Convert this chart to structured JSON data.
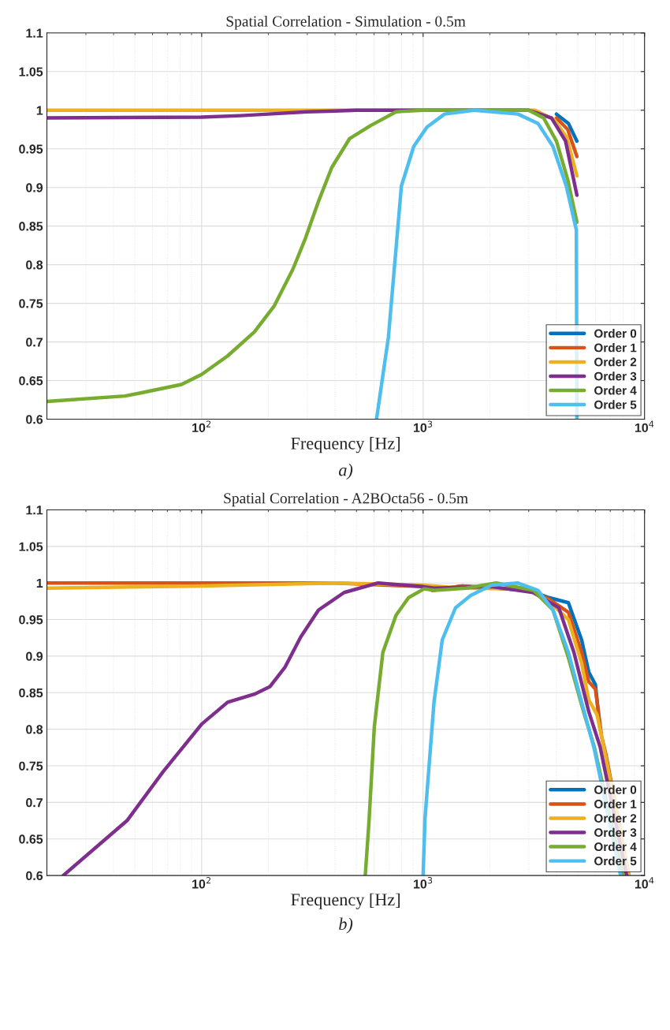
{
  "chart_data": [
    {
      "type": "line",
      "title": "Spatial Correlation - Simulation - 0.5m",
      "xlabel": "Frequency [Hz]",
      "annotations": [
        "a)"
      ],
      "log": "x",
      "grid": true,
      "legend": "bottom right",
      "line_style": "solid",
      "marker": "none",
      "xlim": [
        20,
        10000
      ],
      "xticks": [
        {
          "value": 100,
          "label": "10$^{2}$"
        },
        {
          "value": 1000,
          "label": "10$^{3}$"
        },
        {
          "value": 10000,
          "label": "10$^{4}$"
        }
      ],
      "ylim": [
        0.6,
        1.1
      ],
      "yticks": [
        0.6,
        0.65,
        0.7,
        0.75,
        0.8,
        0.85,
        0.9,
        0.95,
        1,
        1.05,
        1.1
      ],
      "series": [
        {
          "name": "Order 0",
          "color": "#0072bd",
          "x": [
            4000,
            4530,
            4950
          ],
          "values": [
            0.995,
            0.983,
            0.96
          ]
        },
        {
          "name": "Order 1",
          "color": "#d95319",
          "x": [
            4000,
            4500,
            4950
          ],
          "values": [
            0.99,
            0.975,
            0.94
          ]
        },
        {
          "name": "Order 2",
          "color": "#edb120",
          "x": [
            20,
            1000,
            3200,
            3900,
            4450,
            4950
          ],
          "values": [
            1,
            1,
            1,
            0.988,
            0.965,
            0.915
          ]
        },
        {
          "name": "Order 3",
          "color": "#7e2f8e",
          "x": [
            20,
            100,
            150,
            200,
            300,
            400,
            500,
            3000,
            3800,
            4400,
            4950
          ],
          "values": [
            0.99,
            0.991,
            0.993,
            0.995,
            0.998,
            0.999,
            1,
            1,
            0.99,
            0.96,
            0.89
          ]
        },
        {
          "name": "Order 4",
          "color": "#77ac30",
          "x": [
            20,
            45,
            53,
            81,
            100,
            131,
            173,
            213,
            258,
            294,
            337,
            387,
            465,
            578,
            755,
            1000,
            3000,
            3500,
            4000,
            4500,
            4950
          ],
          "values": [
            0.623,
            0.63,
            0.634,
            0.645,
            0.658,
            0.682,
            0.713,
            0.747,
            0.794,
            0.834,
            0.882,
            0.926,
            0.963,
            0.98,
            0.998,
            1,
            1,
            0.99,
            0.96,
            0.91,
            0.855
          ]
        },
        {
          "name": "Order 5",
          "color": "#4dbeee",
          "x": [
            616,
            697,
            798,
            907,
            1040,
            1250,
            1700,
            2680,
            3300,
            3860,
            4430,
            4920,
            4950
          ],
          "values": [
            0.6,
            0.706,
            0.902,
            0.953,
            0.978,
            0.995,
            1,
            0.995,
            0.983,
            0.953,
            0.902,
            0.845,
            0.6
          ]
        }
      ]
    },
    {
      "type": "line",
      "title": "Spatial Correlation - A2BOcta56 - 0.5m",
      "xlabel": "Frequency [Hz]",
      "annotations": [
        "b)"
      ],
      "log": "x",
      "grid": true,
      "legend": "bottom right",
      "line_style": "solid",
      "marker": "none",
      "xlim": [
        20,
        10000
      ],
      "xticks": [
        {
          "value": 100,
          "label": "10$^{2}$"
        },
        {
          "value": 1000,
          "label": "10$^{3}$"
        },
        {
          "value": 10000,
          "label": "10$^{4}$"
        }
      ],
      "ylim": [
        0.6,
        1.1
      ],
      "yticks": [
        0.6,
        0.65,
        0.7,
        0.75,
        0.8,
        0.85,
        0.9,
        0.95,
        1,
        1.05,
        1.1
      ],
      "series": [
        {
          "name": "Order 0",
          "color": "#0072bd",
          "x": [
            1100,
            1500,
            3000,
            3700,
            4530,
            5200,
            5600,
            6000,
            6300
          ],
          "values": [
            0.99,
            0.996,
            0.99,
            0.98,
            0.973,
            0.922,
            0.878,
            0.861,
            0.8
          ]
        },
        {
          "name": "Order 1",
          "color": "#d95319",
          "x": [
            20,
            400,
            1000,
            1100,
            1500,
            3000,
            3700,
            4530,
            5200,
            5600,
            6000,
            6400,
            6700,
            8500
          ],
          "values": [
            1,
            1,
            0.995,
            0.99,
            0.996,
            0.99,
            0.978,
            0.96,
            0.905,
            0.865,
            0.855,
            0.79,
            0.765,
            0.6
          ]
        },
        {
          "name": "Order 2",
          "color": "#edb120",
          "x": [
            20,
            100,
            400,
            1000,
            1500,
            2500,
            3000,
            3700,
            4530,
            5200,
            5600,
            6100,
            6600,
            8500
          ],
          "values": [
            0.993,
            0.996,
            1,
            0.997,
            0.993,
            0.992,
            0.99,
            0.975,
            0.95,
            0.89,
            0.84,
            0.82,
            0.77,
            0.6
          ]
        },
        {
          "name": "Order 3",
          "color": "#7e2f8e",
          "x": [
            23.7,
            46,
            67,
            100,
            131,
            173,
            203,
            238,
            280,
            337,
            440,
            627,
            1000,
            1120,
            2040,
            3150,
            4100,
            4800,
            5600,
            6300,
            8300
          ],
          "values": [
            0.6,
            0.675,
            0.742,
            0.807,
            0.837,
            0.848,
            0.858,
            0.885,
            0.926,
            0.963,
            0.987,
            1,
            0.995,
            0.993,
            0.995,
            0.987,
            0.966,
            0.905,
            0.824,
            0.776,
            0.6
          ]
        },
        {
          "name": "Order 4",
          "color": "#77ac30",
          "x": [
            548,
            570,
            602,
            658,
            755,
            860,
            1010,
            1130,
            1560,
            2140,
            3150,
            3860,
            4530,
            5350,
            5930,
            8000
          ],
          "values": [
            0.6,
            0.675,
            0.803,
            0.905,
            0.956,
            0.98,
            0.992,
            0.99,
            0.993,
            1,
            0.99,
            0.963,
            0.898,
            0.82,
            0.776,
            0.6
          ]
        },
        {
          "name": "Order 5",
          "color": "#4dbeee",
          "x": [
            1000,
            1020,
            1120,
            1220,
            1400,
            1640,
            2040,
            2670,
            3300,
            3860,
            4530,
            5200,
            5930,
            7800
          ],
          "values": [
            0.6,
            0.678,
            0.837,
            0.922,
            0.966,
            0.983,
            0.997,
            1,
            0.99,
            0.963,
            0.905,
            0.837,
            0.773,
            0.6
          ]
        }
      ]
    }
  ]
}
